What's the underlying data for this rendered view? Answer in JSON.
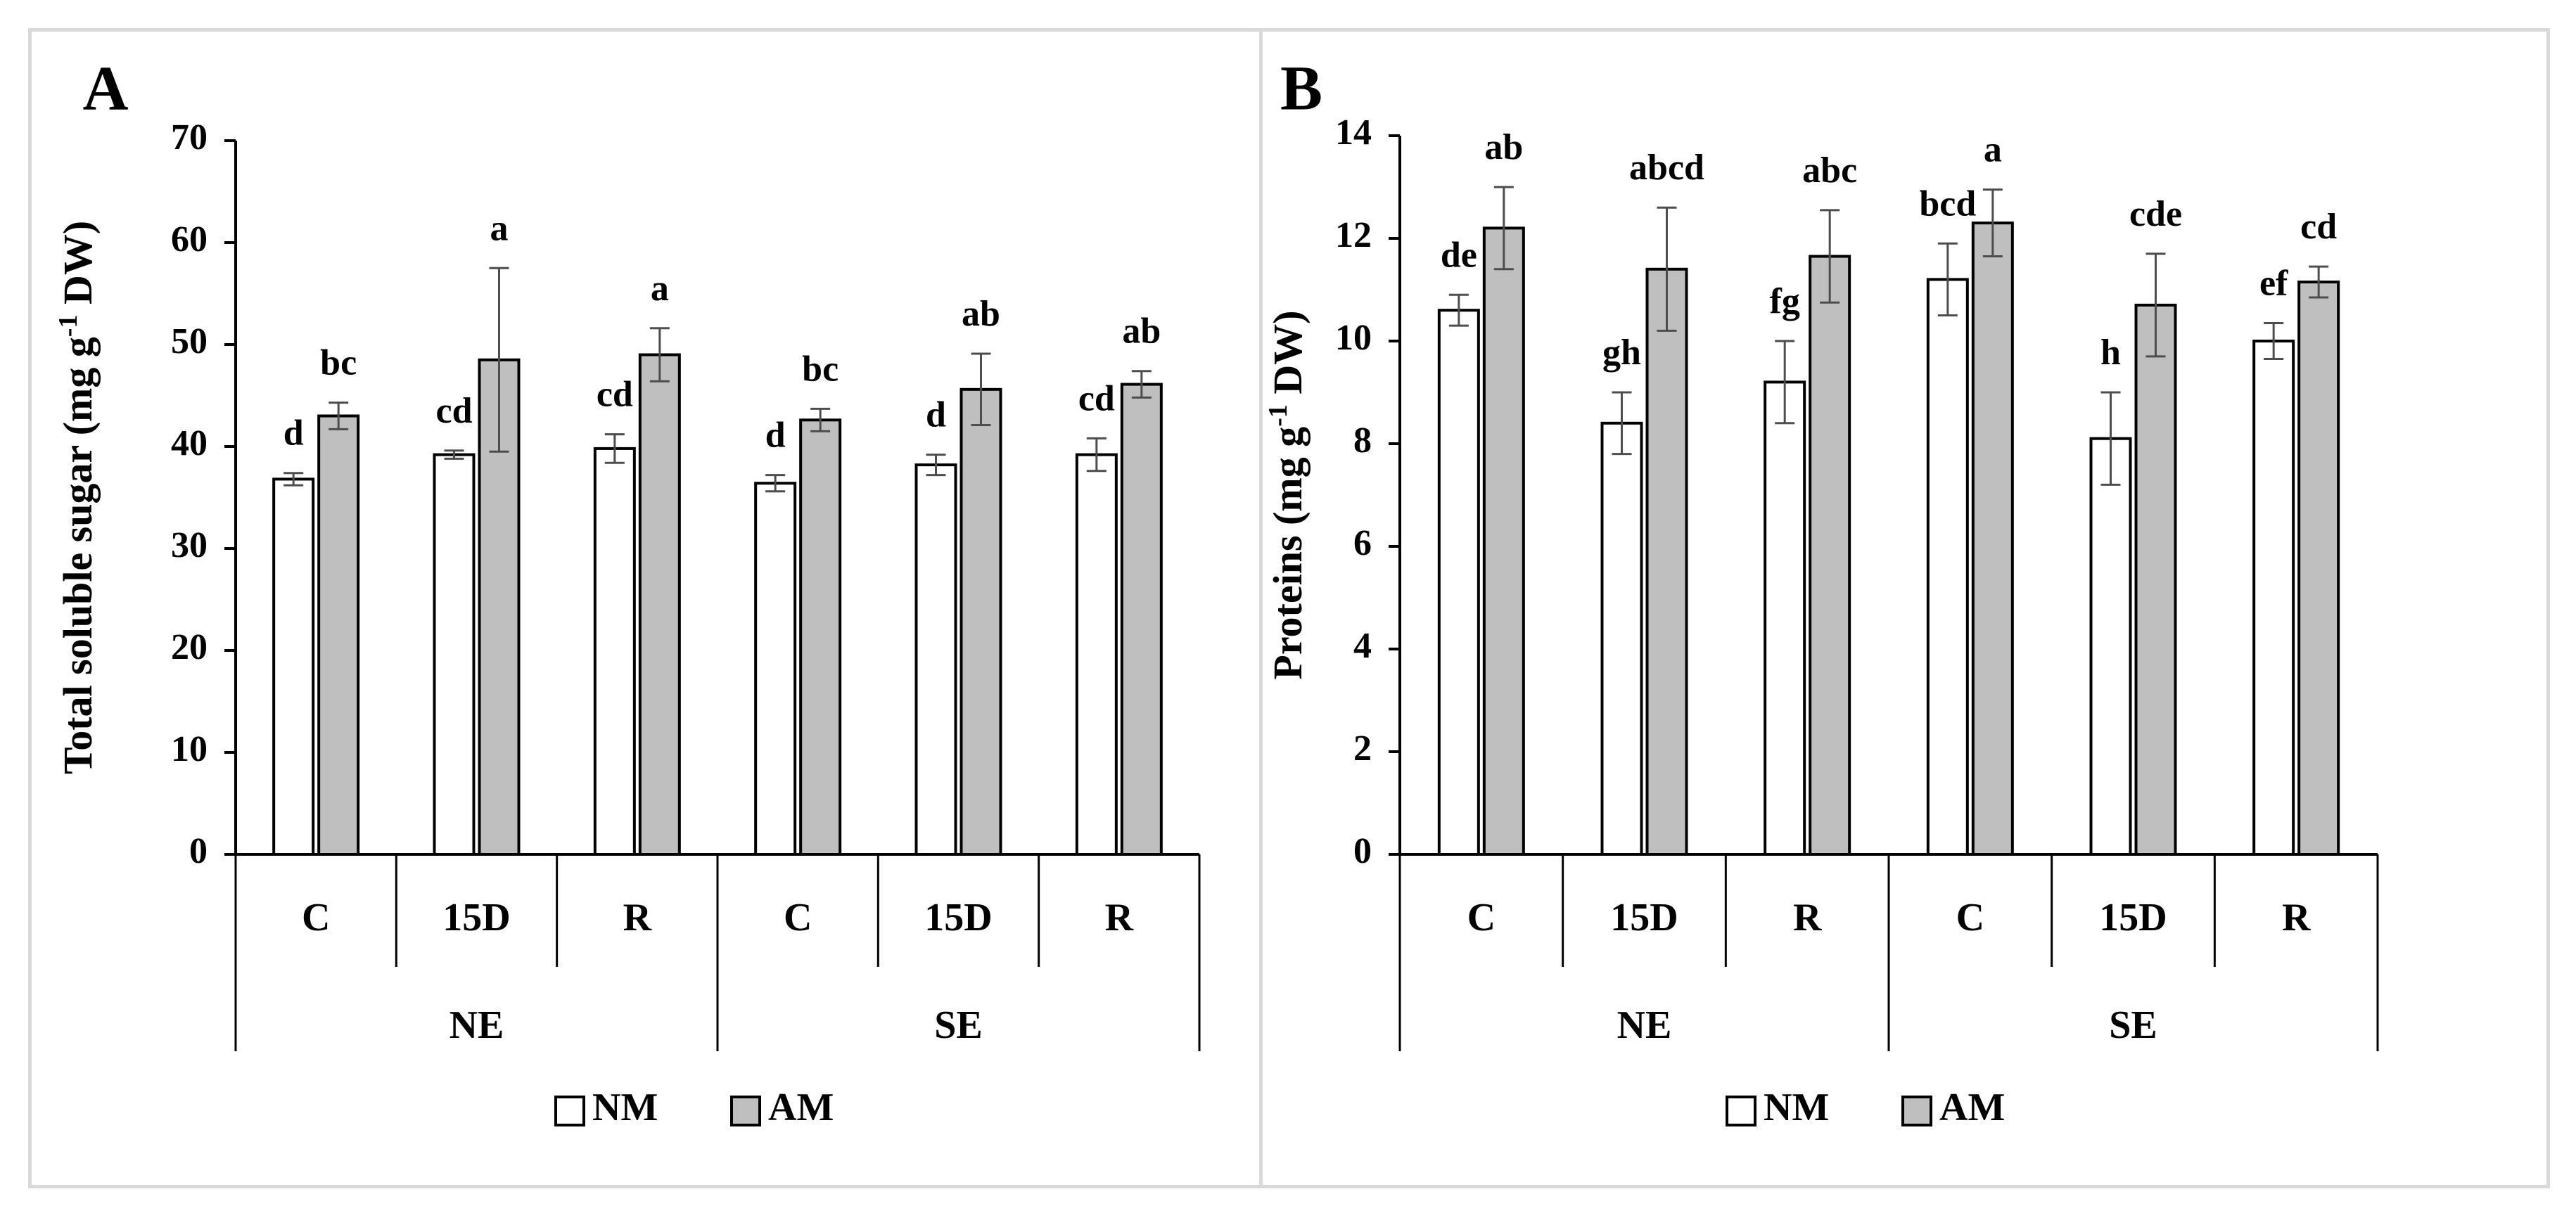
{
  "colors": {
    "nm_fill": "#ffffff",
    "am_fill": "#bfbfbf",
    "axis": "#000000",
    "error_bar": "#4d4d4d",
    "border": "#d9d9d9"
  },
  "chart_data": [
    {
      "type": "bar",
      "panel_label": "A",
      "title": "",
      "ylabel_parts": [
        "Total soluble sugar (mg g",
        "-1",
        " DW)"
      ],
      "ylim": [
        0,
        70
      ],
      "ytick_step": 10,
      "ytick_labels": [
        "0",
        "10",
        "20",
        "30",
        "40",
        "50",
        "60",
        "70"
      ],
      "categories": [
        "C",
        "15D",
        "R",
        "C",
        "15D",
        "R"
      ],
      "groups": [
        {
          "label": "NE",
          "span": 3
        },
        {
          "label": "SE",
          "span": 3
        }
      ],
      "series": [
        {
          "name": "NM",
          "color": "#ffffff",
          "values": [
            36.8,
            39.2,
            39.8,
            36.4,
            38.2,
            39.2
          ],
          "errors": [
            0.6,
            0.4,
            1.4,
            0.8,
            1.0,
            1.6
          ],
          "letters": [
            "d",
            "cd",
            "cd",
            "d",
            "d",
            "cd"
          ]
        },
        {
          "name": "AM",
          "color": "#bfbfbf",
          "values": [
            43.0,
            48.5,
            49.0,
            42.6,
            45.6,
            46.1
          ],
          "errors": [
            1.3,
            9.0,
            2.6,
            1.1,
            3.5,
            1.3
          ],
          "letters": [
            "bc",
            "a",
            "a",
            "bc",
            "ab",
            "ab"
          ]
        }
      ],
      "legend": {
        "position": "bottom",
        "entries": [
          "NM",
          "AM"
        ]
      }
    },
    {
      "type": "bar",
      "panel_label": "B",
      "title": "",
      "ylabel_parts": [
        "Proteins (mg g",
        "-1",
        " DW)"
      ],
      "ylim": [
        0,
        14
      ],
      "ytick_step": 2,
      "ytick_labels": [
        "0",
        "2",
        "4",
        "6",
        "8",
        "10",
        "12",
        "14"
      ],
      "categories": [
        "C",
        "15D",
        "R",
        "C",
        "15D",
        "R"
      ],
      "groups": [
        {
          "label": "NE",
          "span": 3
        },
        {
          "label": "SE",
          "span": 3
        }
      ],
      "series": [
        {
          "name": "NM",
          "color": "#ffffff",
          "values": [
            10.6,
            8.4,
            9.2,
            11.2,
            8.1,
            10.0
          ],
          "errors": [
            0.3,
            0.6,
            0.8,
            0.7,
            0.9,
            0.35
          ],
          "letters": [
            "de",
            "gh",
            "fg",
            "bcd",
            "h",
            "ef"
          ]
        },
        {
          "name": "AM",
          "color": "#bfbfbf",
          "values": [
            12.2,
            11.4,
            11.65,
            12.3,
            10.7,
            11.15
          ],
          "errors": [
            0.8,
            1.2,
            0.9,
            0.65,
            1.0,
            0.3
          ],
          "letters": [
            "ab",
            "abcd",
            "abc",
            "a",
            "cde",
            "cd"
          ]
        }
      ],
      "legend": {
        "position": "bottom",
        "entries": [
          "NM",
          "AM"
        ]
      }
    }
  ]
}
